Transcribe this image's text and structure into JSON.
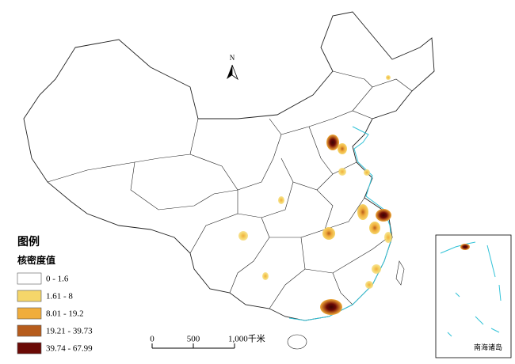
{
  "map": {
    "north_label": "N",
    "legend": {
      "title": "图例",
      "subtitle": "核密度值",
      "items": [
        {
          "label": "0 - 1.6",
          "color": "#ffffff"
        },
        {
          "label": "1.61 - 8",
          "color": "#f5d66a"
        },
        {
          "label": "8.01 - 19.2",
          "color": "#f0ad3c"
        },
        {
          "label": "19.21 - 39.73",
          "color": "#b65c1c"
        },
        {
          "label": "39.74 - 67.99",
          "color": "#6b0a06"
        }
      ]
    },
    "scale_bar": {
      "labels": [
        "0",
        "500",
        "1,000千米"
      ]
    },
    "inset_label": "南海诸岛"
  }
}
